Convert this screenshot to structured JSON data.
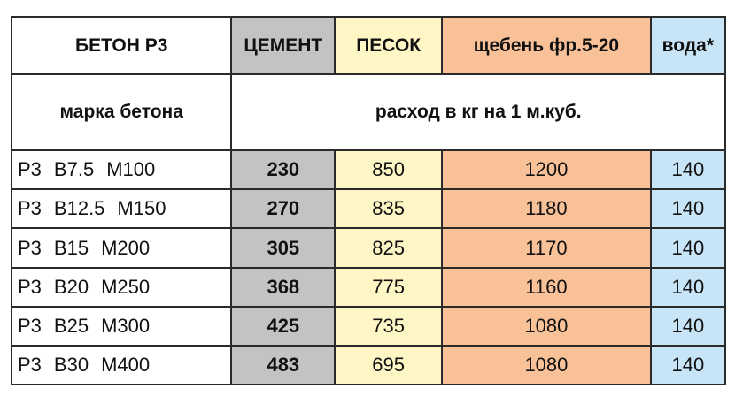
{
  "table": {
    "headers": {
      "grade": "БЕТОН Р3",
      "cement": "ЦЕМЕНТ",
      "sand": "ПЕСОК",
      "gravel": "щебень фр.5-20",
      "water": "вода*"
    },
    "subheader": {
      "grade": "марка бетона",
      "consumption": "расход в кг на 1 м.куб."
    },
    "rows": [
      {
        "type": "Р3",
        "class": "В7.5",
        "mark": "М100",
        "cement": "230",
        "sand": "850",
        "gravel": "1200",
        "water": "140"
      },
      {
        "type": "Р3",
        "class": "В12.5",
        "mark": "М150",
        "cement": "270",
        "sand": "835",
        "gravel": "1180",
        "water": "140"
      },
      {
        "type": "Р3",
        "class": "В15",
        "mark": "М200",
        "cement": "305",
        "sand": "825",
        "gravel": "1170",
        "water": "140"
      },
      {
        "type": "Р3",
        "class": "В20",
        "mark": "М250",
        "cement": "368",
        "sand": "775",
        "gravel": "1160",
        "water": "140"
      },
      {
        "type": "Р3",
        "class": "В25",
        "mark": "М300",
        "cement": "425",
        "sand": "735",
        "gravel": "1080",
        "water": "140"
      },
      {
        "type": "Р3",
        "class": "В30",
        "mark": "М400",
        "cement": "483",
        "sand": "695",
        "gravel": "1080",
        "water": "140"
      }
    ],
    "colors": {
      "cement": "#c3c3c3",
      "sand": "#fff6c6",
      "gravel": "#f9c197",
      "water": "#c8e5f8",
      "border": "#2a2a2a"
    }
  }
}
